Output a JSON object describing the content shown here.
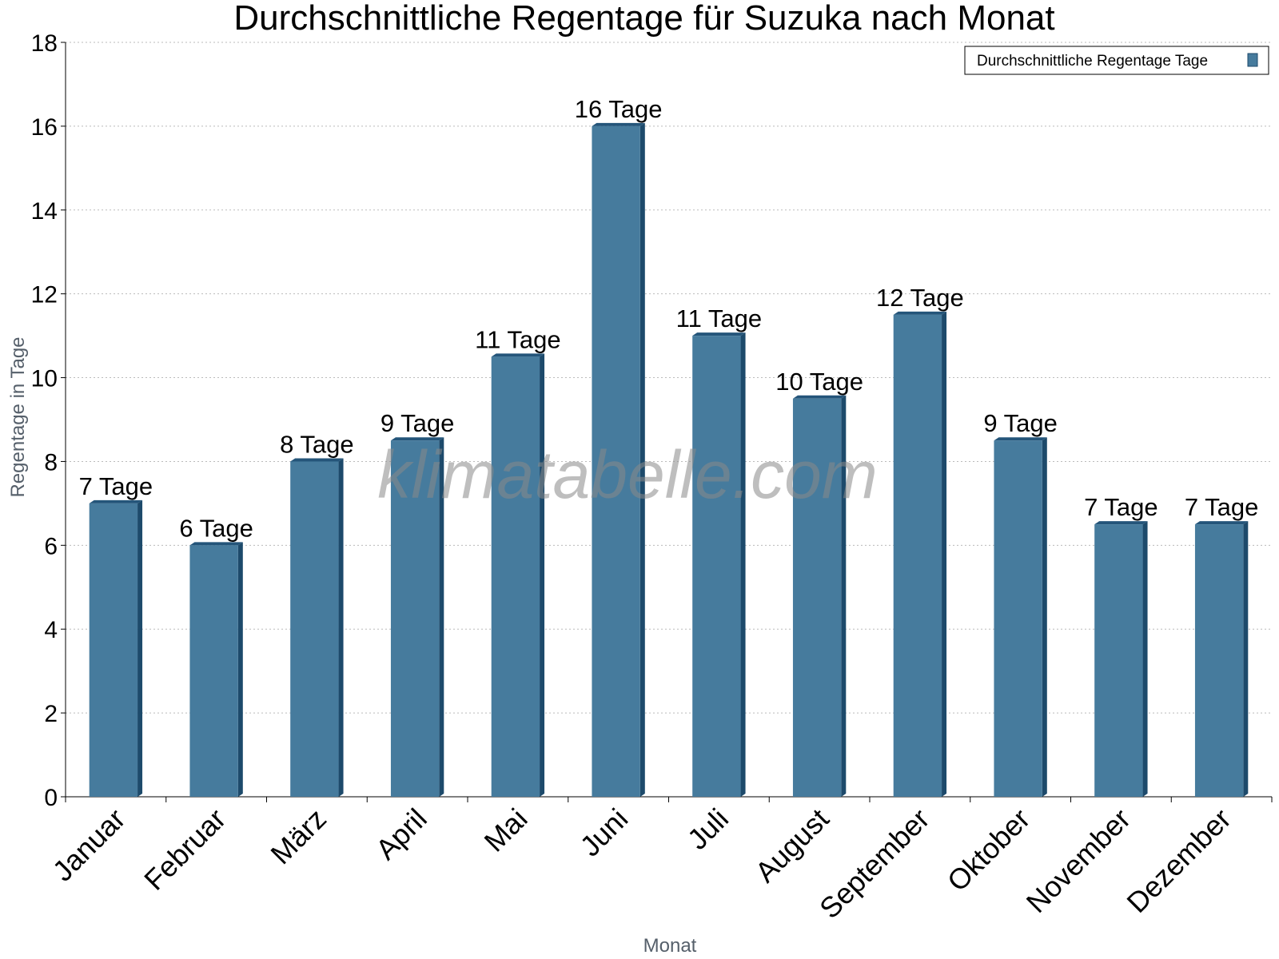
{
  "chart_data": {
    "type": "bar",
    "title": "Durchschnittliche Regentage für Suzuka nach Monat",
    "xlabel": "Monat",
    "ylabel": "Regentage in Tage",
    "ylim": [
      0,
      18
    ],
    "yticks": [
      "0",
      "2",
      "4",
      "6",
      "8",
      "10",
      "12",
      "14",
      "16",
      "18"
    ],
    "grid": true,
    "legend_position": "top-right",
    "categories": [
      "Januar",
      "Februar",
      "März",
      "April",
      "Mai",
      "Juni",
      "Juli",
      "August",
      "September",
      "Oktober",
      "November",
      "Dezember"
    ],
    "series": [
      {
        "name": "Durchschnittliche Regentage Tage",
        "values": [
          7,
          6,
          8,
          8.5,
          10.5,
          16,
          11,
          9.5,
          11.5,
          8.5,
          6.5,
          6.5
        ],
        "data_labels": [
          "7 Tage",
          "6 Tage",
          "8 Tage",
          "9 Tage",
          "11 Tage",
          "16 Tage",
          "11 Tage",
          "10 Tage",
          "12 Tage",
          "9 Tage",
          "7 Tage",
          "7 Tage"
        ]
      }
    ],
    "colors": {
      "bar": "#467b9d",
      "bar_side": "#1d4a6b",
      "bar_top": "#24557a",
      "grid": "#bbbbbb",
      "axis": "#000000"
    }
  },
  "watermark": "klimatabelle.com"
}
